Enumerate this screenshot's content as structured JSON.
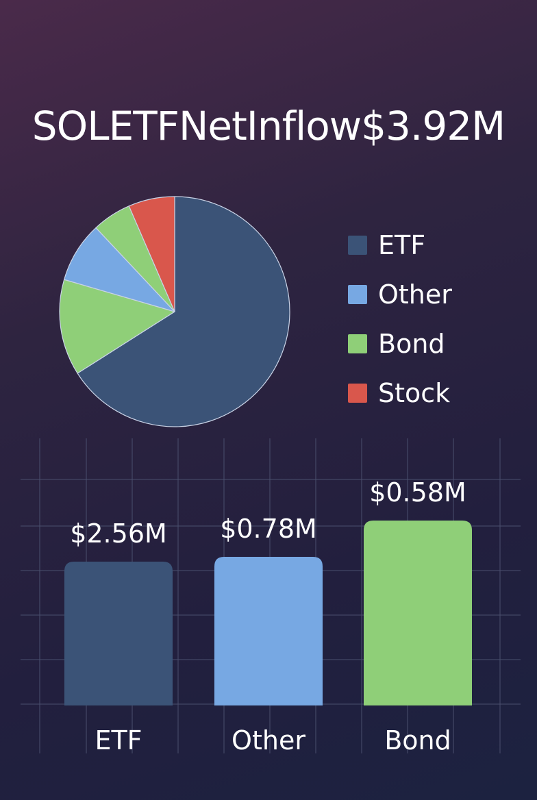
{
  "header": {
    "title": "SOLETFNetInflow$3.92M"
  },
  "colors": {
    "etf": "#3b5377",
    "other": "#77a8e3",
    "bond": "#8fcf78",
    "stock": "#d9574c",
    "grid": "#4a4f6e"
  },
  "chart_data": [
    {
      "type": "pie",
      "title": "",
      "slices": [
        {
          "label": "ETF",
          "value": 66.0,
          "color": "#3b5377"
        },
        {
          "label": "Bond",
          "value": 13.5,
          "color": "#8fcf78"
        },
        {
          "label": "Other",
          "value": 8.5,
          "color": "#77a8e3"
        },
        {
          "label": "Bond",
          "value": 5.5,
          "color": "#8fcf78"
        },
        {
          "label": "Stock",
          "value": 6.5,
          "color": "#d9574c"
        }
      ],
      "legend": [
        {
          "label": "ETF",
          "color": "#3b5377"
        },
        {
          "label": "Other",
          "color": "#77a8e3"
        },
        {
          "label": "Bond",
          "color": "#8fcf78"
        },
        {
          "label": "Stock",
          "color": "#d9574c"
        }
      ],
      "legend_position": "right"
    },
    {
      "type": "bar",
      "title": "",
      "categories": [
        "ETF",
        "Other",
        "Bond"
      ],
      "values": [
        2.56,
        0.78,
        0.58
      ],
      "value_labels": [
        "$2.56M",
        "$0.78M",
        "$0.58M"
      ],
      "colors": [
        "#3b5377",
        "#77a8e3",
        "#8fcf78"
      ],
      "grid": true,
      "xlabel": "",
      "ylabel": ""
    }
  ]
}
